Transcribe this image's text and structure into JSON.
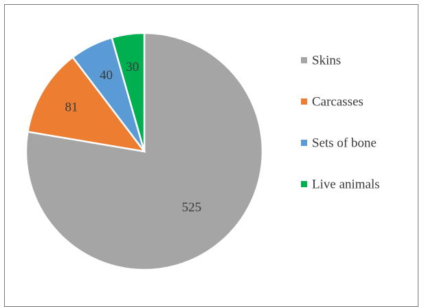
{
  "chart_data": {
    "type": "pie",
    "categories": [
      "Skins",
      "Carcasses",
      "Sets of bone",
      "Live animals"
    ],
    "values": [
      525,
      81,
      40,
      30
    ],
    "colors": [
      "#a5a5a5",
      "#ed7d31",
      "#5b9bd5",
      "#00b050"
    ],
    "start": "12 o'clock, clockwise",
    "legend": "right",
    "data_labels": [
      "525",
      "81",
      "40",
      "30"
    ]
  }
}
